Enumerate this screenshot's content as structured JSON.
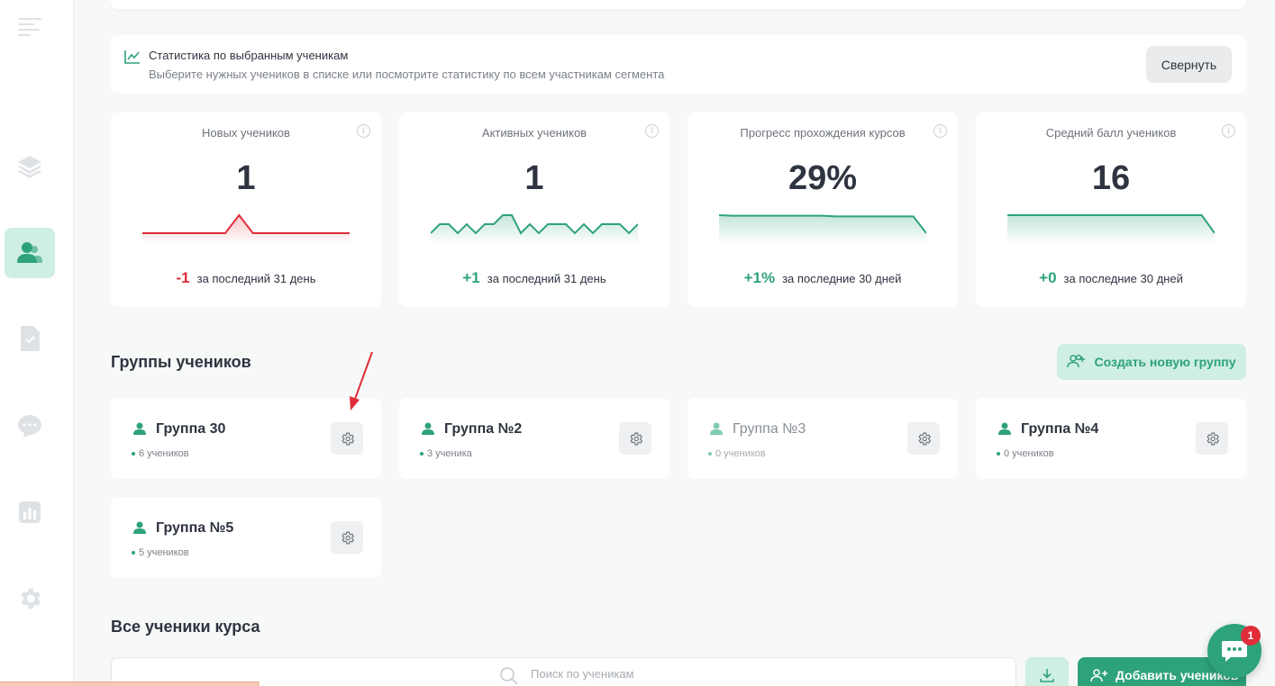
{
  "stats_banner": {
    "title": "Статистика по выбранным ученикам",
    "subtitle": "Выберите нужных учеников в списке или посмотрите статистику по всем участникам сегмента",
    "collapse_label": "Свернуть"
  },
  "stat_cards": [
    {
      "label": "Новых учеников",
      "value": "1",
      "delta": "-1",
      "delta_text": "за последний 31 день",
      "color": "#e12d39",
      "trend": [
        0,
        0,
        0,
        0,
        0,
        0,
        0,
        1,
        0,
        0,
        0,
        0,
        0,
        0,
        0,
        0
      ]
    },
    {
      "label": "Активных учеников",
      "value": "1",
      "delta": "+1",
      "delta_text": "за последний 31 день",
      "color": "#2ea37a",
      "trend": [
        0,
        1,
        1,
        0,
        1,
        0,
        1,
        1,
        2,
        2,
        0,
        1,
        0,
        1,
        1,
        1,
        0,
        1,
        0,
        1,
        1,
        1,
        0,
        1
      ]
    },
    {
      "label": "Прогресс прохождения курсов",
      "value": "29%",
      "delta": "+1%",
      "delta_text": "за последние 30 дней",
      "color": "#2ea37a",
      "trend": [
        30,
        29,
        29,
        29,
        29,
        29,
        29,
        29,
        29,
        28,
        28,
        28,
        28,
        28,
        28,
        28,
        0
      ]
    },
    {
      "label": "Средний балл учеников",
      "value": "16",
      "delta": "+0",
      "delta_text": "за последние 30 дней",
      "color": "#2ea37a",
      "trend": [
        16,
        16,
        16,
        16,
        16,
        16,
        16,
        16,
        16,
        16,
        16,
        16,
        16,
        16,
        16,
        16,
        0
      ]
    }
  ],
  "groups_section": {
    "title": "Группы учеников",
    "create_label": "Создать новую группу"
  },
  "groups": [
    {
      "name": "Группа 30",
      "count": "6 учеников"
    },
    {
      "name": "Группа №2",
      "count": "3 ученика"
    },
    {
      "name": "Группа №3",
      "count": "0 учеников"
    },
    {
      "name": "Группа №4",
      "count": "0 учеников"
    },
    {
      "name": "Группа №5",
      "count": "5 учеников"
    }
  ],
  "students_section": {
    "title": "Все ученики курса",
    "search_placeholder": "Поиск по ученикам",
    "add_label": "Добавить учеников"
  },
  "chat": {
    "badge": "1"
  },
  "icons": {
    "sidebar": [
      "menu-icon",
      "layers-icon",
      "users-icon",
      "document-check-icon",
      "chat-icon",
      "analytics-icon",
      "gear-icon"
    ],
    "accent": "#2ea37a"
  }
}
